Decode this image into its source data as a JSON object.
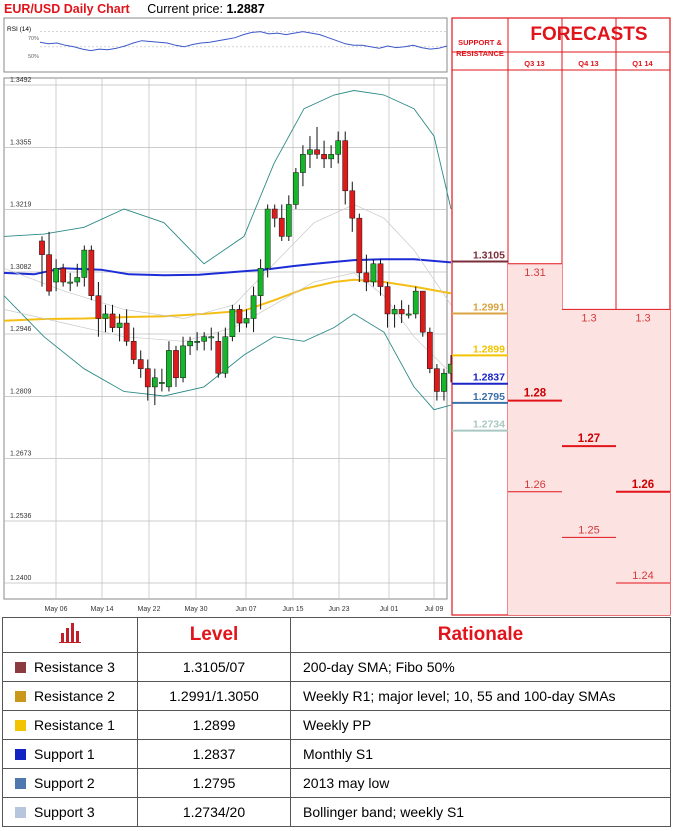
{
  "header": {
    "title": "EUR/USD Daily Chart",
    "price_label": "Current price:",
    "price_value": "1.2887"
  },
  "rsi": {
    "label": "RSI (14)",
    "levels": [
      "70%",
      "50%"
    ]
  },
  "forecast": {
    "title": "FORECASTS",
    "sr_title_line1": "SUPPORT &",
    "sr_title_line2": "RESISTANCE",
    "quarters": [
      "Q3 13",
      "Q4 13",
      "Q1 14"
    ],
    "levels": [
      {
        "label": "1.3105",
        "value": 1.3105,
        "color": "#7b2d3a"
      },
      {
        "label": "1.2991",
        "value": 1.2991,
        "color": "#d9a441"
      },
      {
        "label": "1.2899",
        "value": 1.2899,
        "color": "#f2c400"
      },
      {
        "label": "1.2837",
        "value": 1.2837,
        "color": "#1a24c8"
      },
      {
        "label": "1.2795",
        "value": 1.2795,
        "color": "#3d6fa8"
      },
      {
        "label": "1.2734",
        "value": 1.2734,
        "color": "#a9c8c2"
      }
    ],
    "q3": {
      "high": "1.31",
      "mid": "1.28",
      "low": "1.26"
    },
    "q4": {
      "high": "1.3",
      "mid": "1.27",
      "low": "1.25"
    },
    "q1": {
      "high": "1.3",
      "mid": "1.26",
      "low": "1.24"
    }
  },
  "chart_data": {
    "type": "candlestick",
    "ylim": [
      1.24,
      1.3492
    ],
    "yticks": [
      "1.3492",
      "1.3355",
      "1.3219",
      "1.3082",
      "1.2946",
      "1.2809",
      "1.2673",
      "1.2536",
      "1.2400"
    ],
    "xticks": [
      "May 06",
      "May 14",
      "May 22",
      "May 30",
      "Jun 07",
      "Jun 15",
      "Jun 23",
      "Jul 01",
      "Jul 09"
    ],
    "candles": [
      [
        1.315,
        1.316,
        1.305,
        1.312
      ],
      [
        1.312,
        1.317,
        1.303,
        1.304
      ],
      [
        1.306,
        1.311,
        1.304,
        1.309
      ],
      [
        1.309,
        1.31,
        1.305,
        1.306
      ],
      [
        1.306,
        1.308,
        1.304,
        1.306
      ],
      [
        1.306,
        1.31,
        1.305,
        1.307
      ],
      [
        1.307,
        1.314,
        1.305,
        1.313
      ],
      [
        1.313,
        1.314,
        1.302,
        1.303
      ],
      [
        1.303,
        1.306,
        1.294,
        1.298
      ],
      [
        1.298,
        1.301,
        1.295,
        1.299
      ],
      [
        1.299,
        1.301,
        1.295,
        1.296
      ],
      [
        1.296,
        1.299,
        1.293,
        1.297
      ],
      [
        1.297,
        1.3,
        1.292,
        1.293
      ],
      [
        1.293,
        1.296,
        1.288,
        1.289
      ],
      [
        1.289,
        1.291,
        1.285,
        1.287
      ],
      [
        1.287,
        1.289,
        1.28,
        1.283
      ],
      [
        1.283,
        1.287,
        1.279,
        1.285
      ],
      [
        1.284,
        1.287,
        1.282,
        1.284
      ],
      [
        1.283,
        1.293,
        1.282,
        1.291
      ],
      [
        1.291,
        1.292,
        1.283,
        1.285
      ],
      [
        1.285,
        1.294,
        1.284,
        1.292
      ],
      [
        1.292,
        1.294,
        1.29,
        1.293
      ],
      [
        1.293,
        1.295,
        1.291,
        1.293
      ],
      [
        1.293,
        1.295,
        1.291,
        1.294
      ],
      [
        1.294,
        1.296,
        1.291,
        1.294
      ],
      [
        1.293,
        1.295,
        1.285,
        1.286
      ],
      [
        1.286,
        1.296,
        1.285,
        1.294
      ],
      [
        1.294,
        1.301,
        1.293,
        1.3
      ],
      [
        1.3,
        1.301,
        1.295,
        1.297
      ],
      [
        1.297,
        1.3,
        1.296,
        1.298
      ],
      [
        1.298,
        1.305,
        1.295,
        1.303
      ],
      [
        1.303,
        1.311,
        1.3,
        1.309
      ],
      [
        1.309,
        1.323,
        1.307,
        1.322
      ],
      [
        1.322,
        1.323,
        1.318,
        1.32
      ],
      [
        1.32,
        1.323,
        1.315,
        1.316
      ],
      [
        1.316,
        1.325,
        1.315,
        1.323
      ],
      [
        1.323,
        1.331,
        1.322,
        1.33
      ],
      [
        1.33,
        1.336,
        1.327,
        1.334
      ],
      [
        1.334,
        1.338,
        1.331,
        1.335
      ],
      [
        1.335,
        1.34,
        1.333,
        1.334
      ],
      [
        1.334,
        1.337,
        1.331,
        1.333
      ],
      [
        1.333,
        1.336,
        1.331,
        1.334
      ],
      [
        1.334,
        1.339,
        1.332,
        1.337
      ],
      [
        1.337,
        1.339,
        1.323,
        1.326
      ],
      [
        1.326,
        1.328,
        1.317,
        1.32
      ],
      [
        1.32,
        1.321,
        1.306,
        1.308
      ],
      [
        1.308,
        1.312,
        1.304,
        1.306
      ],
      [
        1.306,
        1.311,
        1.305,
        1.31
      ],
      [
        1.31,
        1.311,
        1.303,
        1.305
      ],
      [
        1.305,
        1.306,
        1.296,
        1.299
      ],
      [
        1.299,
        1.301,
        1.296,
        1.3
      ],
      [
        1.3,
        1.302,
        1.297,
        1.299
      ],
      [
        1.299,
        1.301,
        1.298,
        1.299
      ],
      [
        1.299,
        1.305,
        1.298,
        1.304
      ],
      [
        1.304,
        1.304,
        1.294,
        1.295
      ],
      [
        1.295,
        1.296,
        1.286,
        1.287
      ],
      [
        1.287,
        1.288,
        1.28,
        1.282
      ],
      [
        1.282,
        1.287,
        1.28,
        1.286
      ],
      [
        1.286,
        1.29,
        1.284,
        1.288
      ]
    ],
    "series": [
      {
        "name": "",
        "color": "#1c2dd6",
        "values": [
          [
            0,
            1.308
          ],
          [
            30,
            1.3077
          ],
          [
            58,
            1.309
          ],
          [
            97,
            1.3087
          ],
          [
            125,
            1.3077
          ],
          [
            160,
            1.3075
          ],
          [
            195,
            1.3076
          ],
          [
            230,
            1.3082
          ],
          [
            260,
            1.3087
          ],
          [
            290,
            1.3095
          ],
          [
            320,
            1.3102
          ],
          [
            350,
            1.3108
          ],
          [
            380,
            1.311
          ],
          [
            410,
            1.311
          ],
          [
            447,
            1.3103
          ]
        ]
      },
      {
        "name": "",
        "color": "#f5be14",
        "values": [
          [
            0,
            1.2975
          ],
          [
            40,
            1.2979
          ],
          [
            80,
            1.298
          ],
          [
            120,
            1.2983
          ],
          [
            160,
            1.2985
          ],
          [
            200,
            1.299
          ],
          [
            240,
            1.2997
          ],
          [
            270,
            1.302
          ],
          [
            300,
            1.3045
          ],
          [
            330,
            1.306
          ],
          [
            350,
            1.3065
          ],
          [
            380,
            1.306
          ],
          [
            410,
            1.305
          ],
          [
            447,
            1.3035
          ]
        ]
      },
      {
        "name": "",
        "color": "#2e8b88",
        "values": [
          [
            0,
            1.316
          ],
          [
            40,
            1.3165
          ],
          [
            80,
            1.318
          ],
          [
            120,
            1.322
          ],
          [
            160,
            1.319
          ],
          [
            200,
            1.31
          ],
          [
            240,
            1.316
          ],
          [
            270,
            1.332
          ],
          [
            300,
            1.344
          ],
          [
            330,
            1.347
          ],
          [
            350,
            1.348
          ],
          [
            380,
            1.347
          ],
          [
            410,
            1.344
          ],
          [
            430,
            1.338
          ],
          [
            447,
            1.322
          ]
        ]
      },
      {
        "name": "",
        "color": "#2e8b88",
        "values": [
          [
            0,
            1.303
          ],
          [
            40,
            1.294
          ],
          [
            80,
            1.287
          ],
          [
            120,
            1.282
          ],
          [
            160,
            1.281
          ],
          [
            200,
            1.283
          ],
          [
            240,
            1.29
          ],
          [
            270,
            1.294
          ],
          [
            300,
            1.293
          ],
          [
            330,
            1.296
          ],
          [
            350,
            1.299
          ],
          [
            380,
            1.295
          ],
          [
            410,
            1.283
          ],
          [
            430,
            1.278
          ],
          [
            447,
            1.279
          ]
        ]
      },
      {
        "name": "",
        "color": "#c9c9c9",
        "values": [
          [
            0,
            1.309
          ],
          [
            60,
            1.304
          ],
          [
            120,
            1.3
          ],
          [
            180,
            1.298
          ],
          [
            230,
            1.301
          ],
          [
            270,
            1.31
          ],
          [
            310,
            1.319
          ],
          [
            350,
            1.323
          ],
          [
            380,
            1.32
          ],
          [
            410,
            1.313
          ],
          [
            447,
            1.301
          ]
        ]
      },
      {
        "name": "",
        "color": "#c9c9c9",
        "values": [
          [
            0,
            1.3
          ],
          [
            60,
            1.297
          ],
          [
            120,
            1.294
          ],
          [
            180,
            1.293
          ],
          [
            230,
            1.296
          ],
          [
            270,
            1.301
          ],
          [
            310,
            1.306
          ],
          [
            350,
            1.308
          ],
          [
            380,
            1.303
          ],
          [
            410,
            1.294
          ],
          [
            447,
            1.286
          ]
        ]
      }
    ],
    "rsi_values": [
      56,
      54,
      55,
      52,
      50,
      47,
      45,
      47,
      46,
      48,
      51,
      55,
      58,
      57,
      56,
      55,
      52,
      50,
      53,
      55,
      56,
      58,
      60,
      62,
      66,
      69,
      70,
      67,
      68,
      66,
      68,
      70,
      68,
      66,
      62,
      58,
      54,
      52,
      52,
      50,
      48,
      51,
      49,
      50,
      52,
      49,
      47,
      48,
      51
    ]
  },
  "table": {
    "header_level": "Level",
    "header_rationale": "Rationale",
    "rows": [
      {
        "name": "Resistance 3",
        "level": "1.3105/07",
        "rationale": "200-day SMA; Fibo 50%",
        "color": "#8b3a40"
      },
      {
        "name": "Resistance 2",
        "level": "1.2991/1.3050",
        "rationale": "Weekly R1; major level; 10, 55 and 100-day SMAs",
        "color": "#c9981a"
      },
      {
        "name": "Resistance 1",
        "level": "1.2899",
        "rationale": "Weekly PP",
        "color": "#f2c400"
      },
      {
        "name": "Support 1",
        "level": "1.2837",
        "rationale": "Monthly S1",
        "color": "#1322c2"
      },
      {
        "name": "Support 2",
        "level": "1.2795",
        "rationale": "2013 may low",
        "color": "#4f79ae"
      },
      {
        "name": "Support 3",
        "level": "1.2734/20",
        "rationale": "Bollinger band; weekly S1",
        "color": "#b7c6dc"
      }
    ]
  }
}
